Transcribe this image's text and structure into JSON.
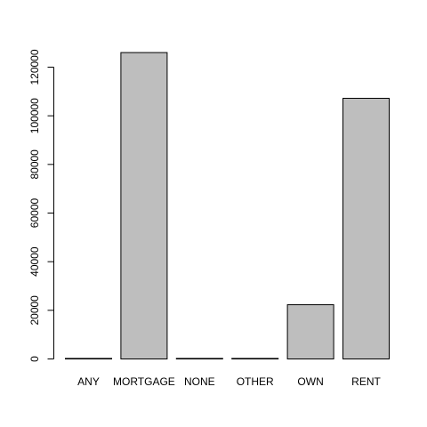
{
  "chart_data": {
    "type": "bar",
    "categories": [
      "ANY",
      "MORTGAGE",
      "NONE",
      "OTHER",
      "OWN",
      "RENT"
    ],
    "values": [
      3,
      126000,
      50,
      180,
      22300,
      107200
    ],
    "title": "",
    "xlabel": "",
    "ylabel": "",
    "ylim": [
      0,
      120000
    ],
    "y_ticks": [
      0,
      20000,
      40000,
      60000,
      80000,
      100000,
      120000
    ],
    "y_tick_labels": [
      "0",
      "20000",
      "40000",
      "60000",
      "80000",
      "100000",
      "120000"
    ],
    "grid": false,
    "legend": "none",
    "bar_fill": "#bebebe",
    "bar_stroke": "#000000"
  }
}
